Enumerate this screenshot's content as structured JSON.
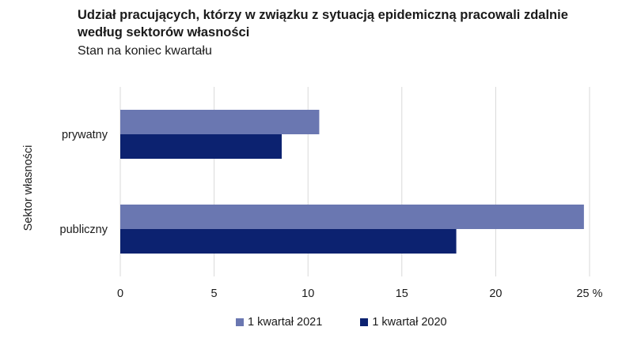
{
  "chart_data": {
    "type": "bar",
    "orientation": "horizontal",
    "title": "Udział pracujących, którzy w związku z sytuacją epidemiczną pracowali zdalnie według sektorów własności",
    "subtitle": "Stan na koniec kwartału",
    "ylabel": "Sektor własności",
    "xlabel": "",
    "categories": [
      "prywatny",
      "publiczny"
    ],
    "series": [
      {
        "name": "1 kwartał 2021",
        "color": "#6a77b1",
        "values": [
          10.6,
          24.7
        ]
      },
      {
        "name": "1 kwartał 2020",
        "color": "#0c2270",
        "values": [
          8.6,
          17.9
        ]
      }
    ],
    "xlim": [
      0,
      25
    ],
    "xticks": [
      "0",
      "5",
      "10",
      "15",
      "20",
      "25 %"
    ],
    "grid": true,
    "legend_position": "bottom"
  }
}
